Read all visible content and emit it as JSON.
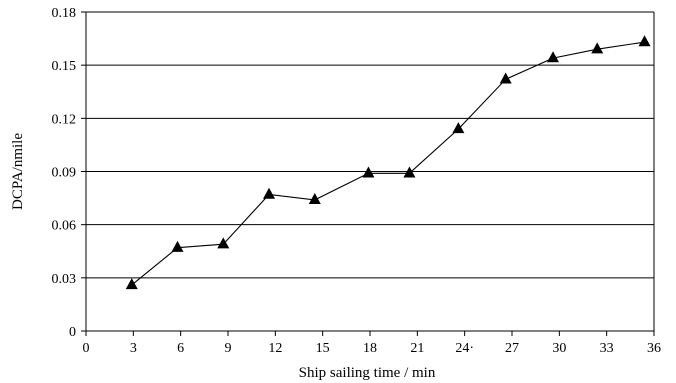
{
  "chart_data": {
    "type": "line",
    "xlabel": "Ship sailing time / min",
    "ylabel": "DCPA/nmile",
    "xlim": [
      0,
      36
    ],
    "ylim": [
      0,
      0.18
    ],
    "x_ticks": [
      0,
      3,
      6,
      9,
      12,
      15,
      18,
      21,
      24,
      27,
      30,
      33,
      36
    ],
    "x_tick_labels": [
      "0",
      "3",
      "6",
      "9",
      "12",
      "15",
      "18",
      "21",
      "24·",
      "27",
      "30",
      "33",
      "36"
    ],
    "y_ticks": [
      0,
      0.03,
      0.06,
      0.09,
      0.12,
      0.15,
      0.18
    ],
    "y_tick_labels": [
      "0",
      "0.03",
      "0.06",
      "0.09",
      "0.12",
      "0.15",
      "0.18"
    ],
    "grid": "horizontal",
    "marker": "triangle",
    "series": [
      {
        "x": [
          2.9,
          5.8,
          8.7,
          11.6,
          14.5,
          17.9,
          20.5,
          23.6,
          26.6,
          29.6,
          32.4,
          35.4
        ],
        "y": [
          0.026,
          0.047,
          0.049,
          0.077,
          0.074,
          0.089,
          0.089,
          0.114,
          0.142,
          0.154,
          0.159,
          0.163
        ]
      }
    ]
  }
}
